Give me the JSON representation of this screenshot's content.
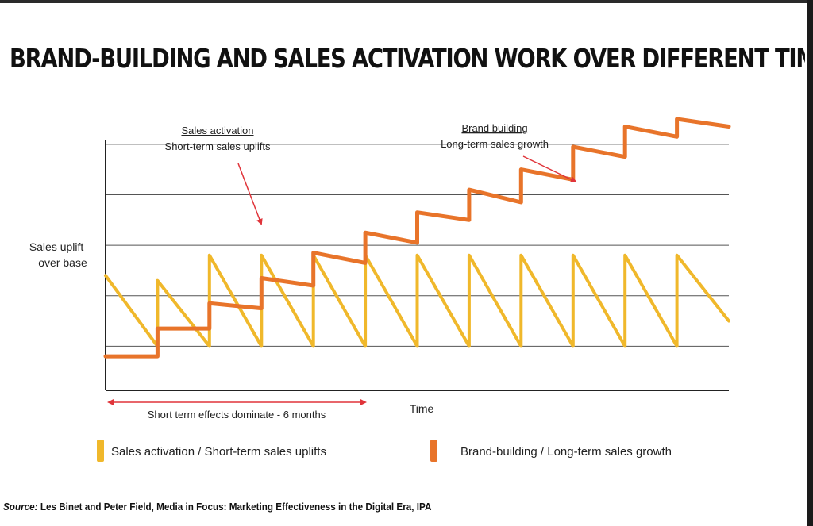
{
  "title": "BRAND-BUILDING AND SALES ACTIVATION WORK OVER DIFFERENT TIMESCALES",
  "source": {
    "prefix": "Source:",
    "text": " Les Binet and Peter Field, Media in Focus: Marketing Effectiveness in the Digital Era, IPA"
  },
  "colors": {
    "sales_activation": "#F0B82B",
    "brand_building": "#E8742A",
    "annotation_arrow": "#E0343A",
    "gridline": "#555555"
  },
  "chart_data": {
    "type": "line",
    "title": "BRAND-BUILDING AND SALES ACTIVATION WORK OVER DIFFERENT TIMESCALES",
    "xlabel": "Time",
    "ylabel": "Sales uplift over base",
    "xlim": [
      0,
      12
    ],
    "ylim": [
      0,
      5.5
    ],
    "gridlines_y": [
      1,
      2,
      3,
      4,
      5
    ],
    "legend_placement": "bottom",
    "series": [
      {
        "name": "Sales activation / Short-term sales uplifts",
        "color": "#F0B82B",
        "points": [
          [
            0,
            2.4
          ],
          [
            1,
            1
          ],
          [
            1,
            2.3
          ],
          [
            2,
            1
          ],
          [
            2,
            2.8
          ],
          [
            3,
            1
          ],
          [
            3,
            2.8
          ],
          [
            4,
            1
          ],
          [
            4,
            2.8
          ],
          [
            5,
            1
          ],
          [
            5,
            2.8
          ],
          [
            6,
            1
          ],
          [
            6,
            2.8
          ],
          [
            7,
            1
          ],
          [
            7,
            2.8
          ],
          [
            8,
            1
          ],
          [
            8,
            2.8
          ],
          [
            9,
            1
          ],
          [
            9,
            2.8
          ],
          [
            10,
            1
          ],
          [
            10,
            2.8
          ],
          [
            11,
            1
          ],
          [
            11,
            2.8
          ],
          [
            12,
            1.5
          ]
        ]
      },
      {
        "name": "Brand-building / Long-term sales growth",
        "color": "#E8742A",
        "points": [
          [
            0,
            0.8
          ],
          [
            1,
            0.8
          ],
          [
            1,
            1.35
          ],
          [
            2,
            1.35
          ],
          [
            2,
            1.85
          ],
          [
            3,
            1.75
          ],
          [
            3,
            2.35
          ],
          [
            4,
            2.2
          ],
          [
            4,
            2.85
          ],
          [
            5,
            2.65
          ],
          [
            5,
            3.25
          ],
          [
            6,
            3.05
          ],
          [
            6,
            3.65
          ],
          [
            7,
            3.5
          ],
          [
            7,
            4.1
          ],
          [
            8,
            3.85
          ],
          [
            8,
            4.5
          ],
          [
            9,
            4.3
          ],
          [
            9,
            4.95
          ],
          [
            10,
            4.75
          ],
          [
            10,
            5.35
          ],
          [
            11,
            5.15
          ],
          [
            11,
            5.5
          ],
          [
            12,
            5.35
          ]
        ]
      }
    ],
    "annotations": {
      "sales_activation": {
        "heading": "Sales activation",
        "subtext": "Short-term sales uplifts"
      },
      "brand_building": {
        "heading": "Brand building",
        "subtext": "Long-term sales growth"
      },
      "range_label": "Short term effects dominate - 6 months"
    },
    "legend": [
      {
        "label": "Sales activation / Short-term sales uplifts",
        "color": "#F0B82B"
      },
      {
        "label": "Brand-building / Long-term sales growth",
        "color": "#E8742A"
      }
    ]
  }
}
